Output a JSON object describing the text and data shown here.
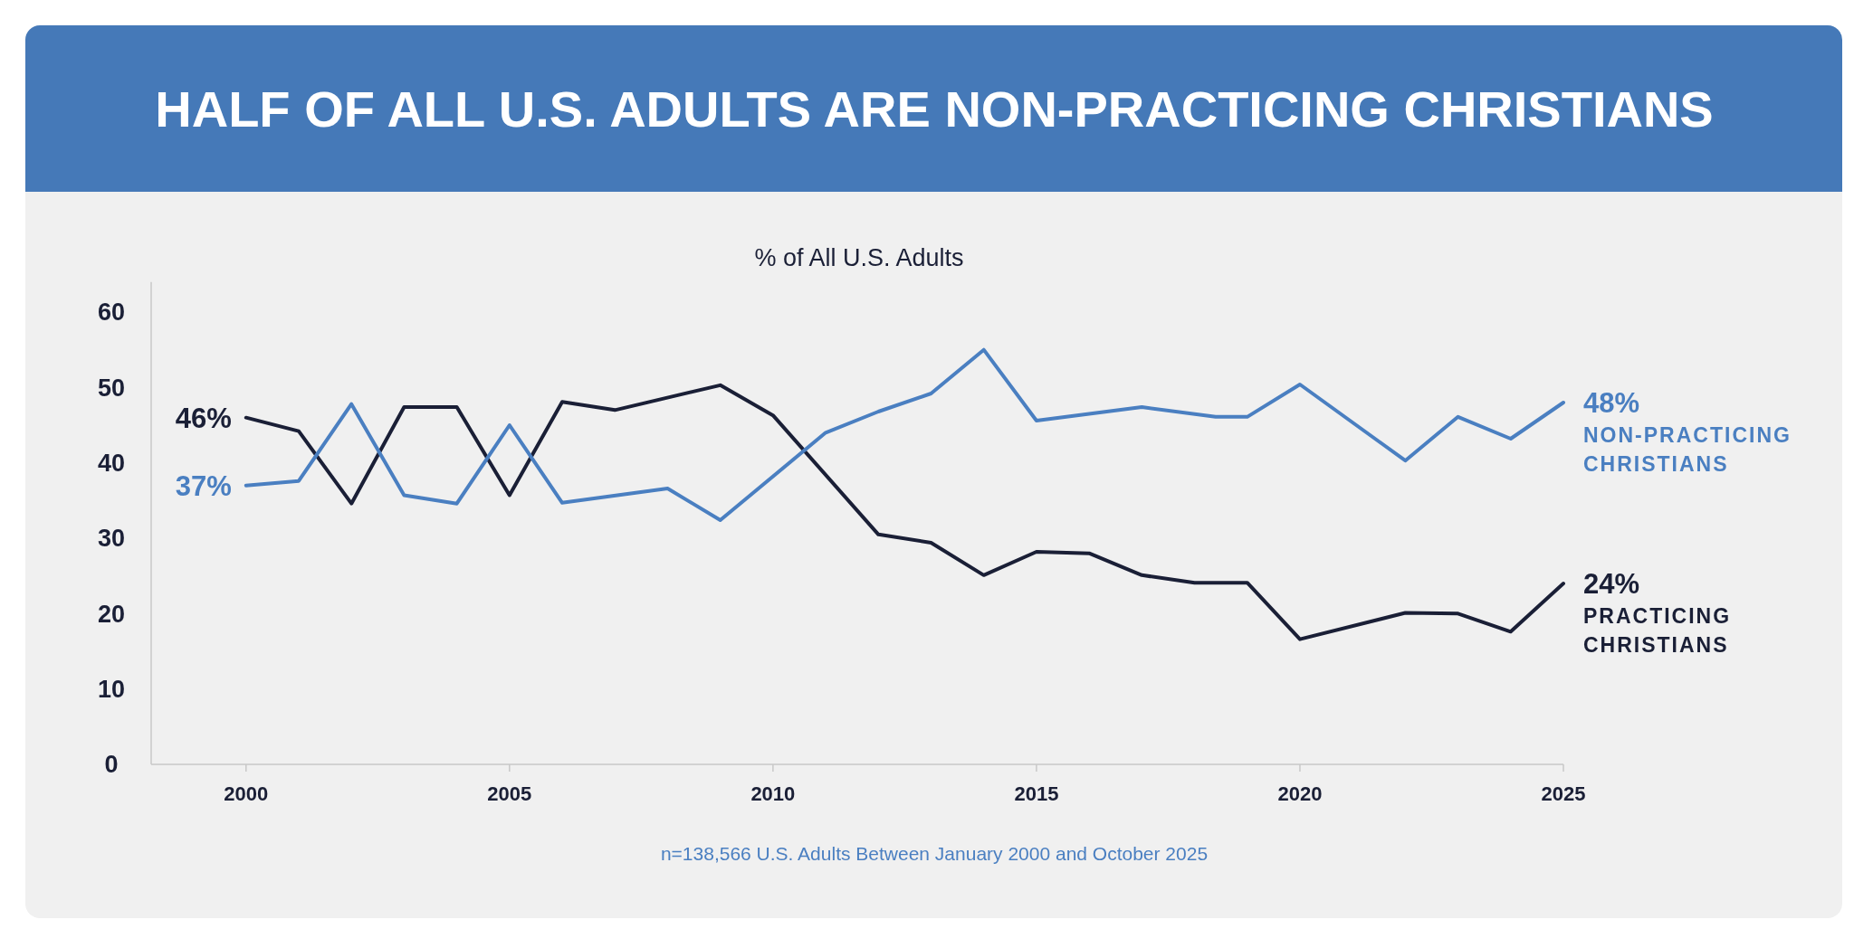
{
  "chart_data": {
    "type": "line",
    "title": "HALF OF ALL U.S. ADULTS ARE NON-PRACTICING CHRISTIANS",
    "subtitle": "% of All U.S. Adults",
    "xlim": [
      1998.2,
      2025
    ],
    "xticks": [
      2000,
      2005,
      2010,
      2015,
      2020,
      2025
    ],
    "ylim": [
      0,
      64
    ],
    "yticks": [
      0,
      10,
      20,
      30,
      40,
      50,
      60
    ],
    "grid": false,
    "legend": false,
    "marker": "none",
    "line_style": "solid",
    "series": [
      {
        "name": "PRACTICING CHRISTIANS",
        "color": "#1a1f36",
        "x": [
          2000,
          2001,
          2002,
          2003,
          2004,
          2005,
          2006,
          2007,
          2009,
          2010,
          2012,
          2013,
          2014,
          2015,
          2016,
          2017,
          2018,
          2019,
          2020,
          2022,
          2023,
          2024,
          2025
        ],
        "values": [
          46,
          44.2,
          34.6,
          47.4,
          47.4,
          35.7,
          48.1,
          47.0,
          50.3,
          46.3,
          30.5,
          29.4,
          25.1,
          28.2,
          28.0,
          25.1,
          24.1,
          24.1,
          16.6,
          20.1,
          20.0,
          17.6,
          24
        ],
        "value_labels": [
          "46%",
          null,
          null,
          null,
          null,
          null,
          null,
          null,
          null,
          null,
          null,
          null,
          null,
          null,
          null,
          null,
          null,
          null,
          null,
          null,
          null,
          null,
          "24%"
        ]
      },
      {
        "name": "NON-PRACTICING CHRISTIANS",
        "color": "#4a7fc1",
        "x": [
          2000,
          2001,
          2002,
          2003,
          2004,
          2005,
          2006,
          2008,
          2009,
          2011,
          2012,
          2013,
          2014,
          2015,
          2017,
          2018.4,
          2019,
          2020,
          2022,
          2023,
          2024,
          2025
        ],
        "values": [
          37,
          37.6,
          47.8,
          35.7,
          34.6,
          45.0,
          34.7,
          36.6,
          32.4,
          44.0,
          46.8,
          49.2,
          55.0,
          45.6,
          47.4,
          46.1,
          46.1,
          50.4,
          40.3,
          46.1,
          43.2,
          48
        ],
        "value_labels": [
          "37%",
          null,
          null,
          null,
          null,
          null,
          null,
          null,
          null,
          null,
          null,
          null,
          null,
          null,
          null,
          null,
          null,
          null,
          null,
          null,
          null,
          "48%"
        ]
      }
    ],
    "annotations": [
      "n=138,566 U.S. Adults Between January 2000 and October 2025"
    ]
  }
}
